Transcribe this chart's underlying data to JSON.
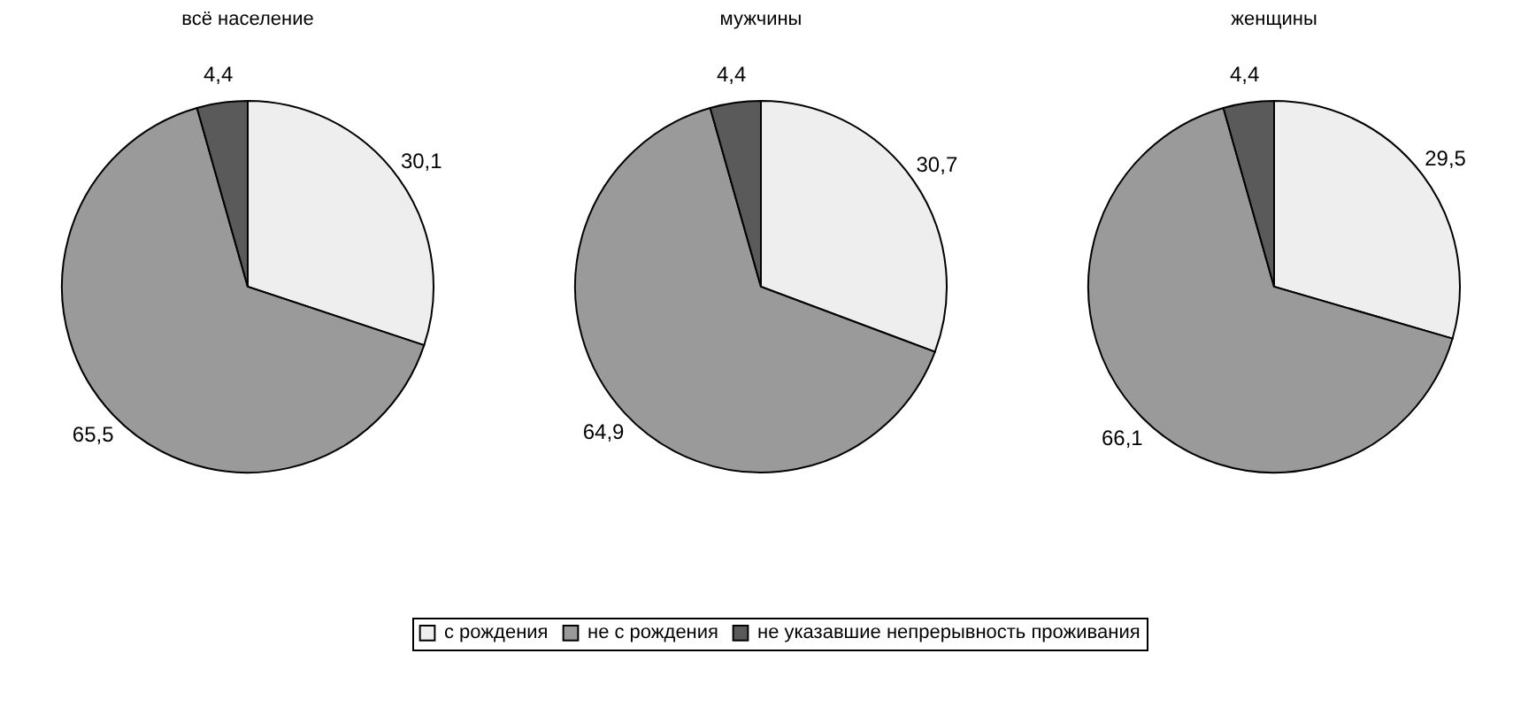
{
  "chart_data": [
    {
      "type": "pie",
      "title": "всё население",
      "categories": [
        "с рождения",
        "не с рождения",
        "не указавшие непрерывность проживания"
      ],
      "values": [
        30.1,
        65.5,
        4.4
      ],
      "value_labels": [
        "30,1",
        "65,5",
        "4,4"
      ],
      "colors": [
        "#eeeeee",
        "#9a9a9a",
        "#5a5a5a"
      ],
      "legend": "bottom"
    },
    {
      "type": "pie",
      "title": "мужчины",
      "values": [
        30.7,
        64.9,
        4.4
      ],
      "value_labels": [
        "30,7",
        "64,9",
        "4,4"
      ],
      "colors": [
        "#eeeeee",
        "#9a9a9a",
        "#5a5a5a"
      ]
    },
    {
      "type": "pie",
      "title": "женщины",
      "values": [
        29.5,
        66.1,
        4.4
      ],
      "value_labels": [
        "29,5",
        "66,1",
        "4,4"
      ],
      "colors": [
        "#eeeeee",
        "#9a9a9a",
        "#5a5a5a"
      ]
    }
  ]
}
